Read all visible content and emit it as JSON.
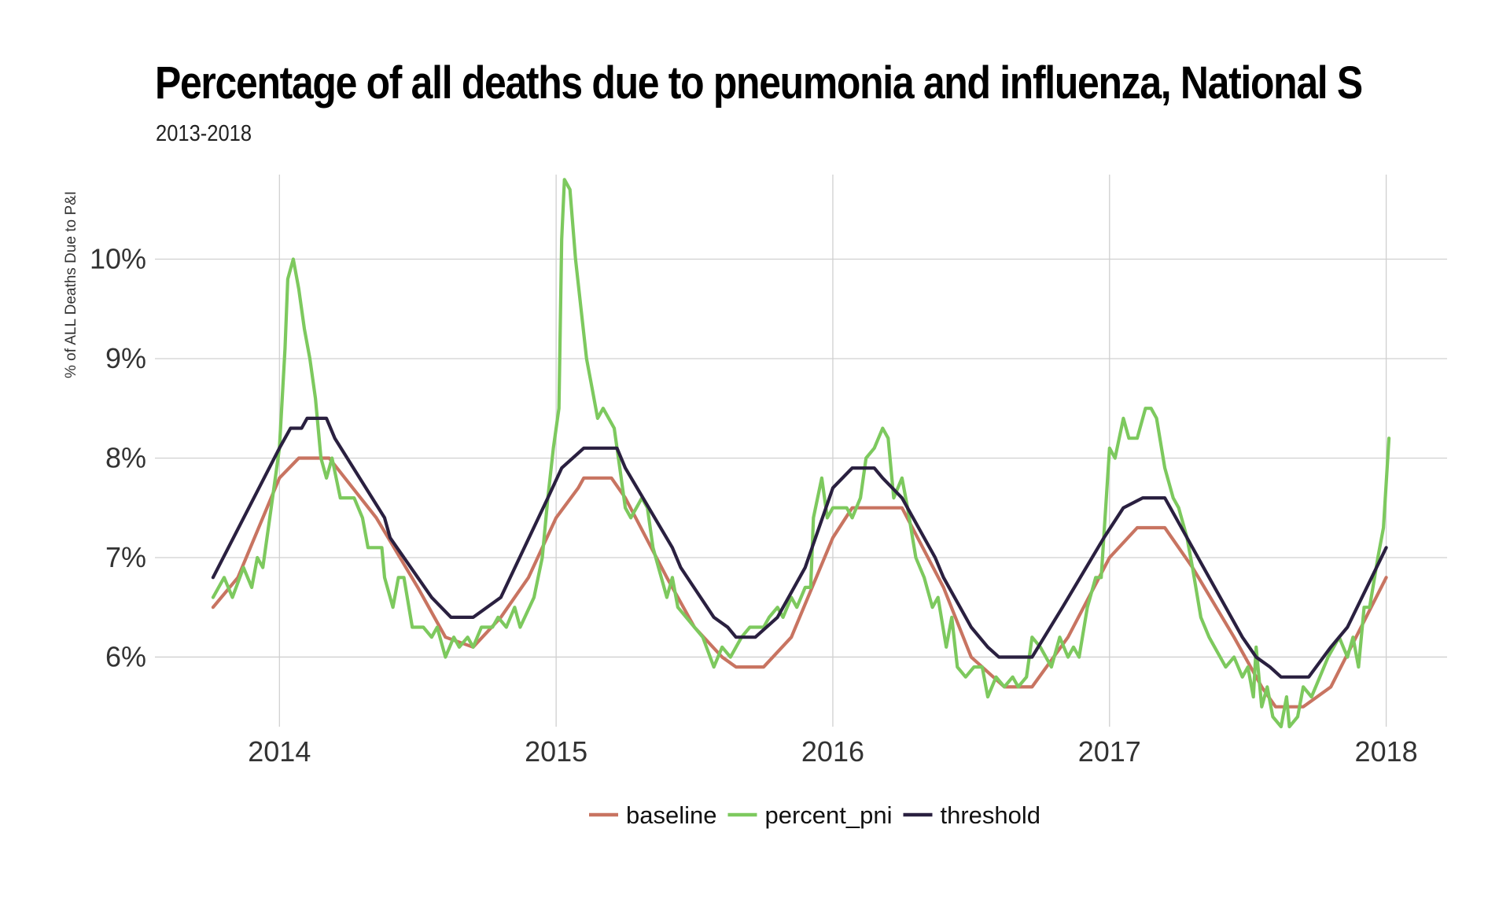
{
  "chart_data": {
    "type": "line",
    "title": "Percentage of all deaths due to pneumonia and influenza, National S",
    "subtitle": "2013-2018",
    "xlabel": "",
    "ylabel": "% of ALL Deaths Due to P&I",
    "xlim": [
      2013.55,
      2018.22
    ],
    "ylim": [
      5.3,
      10.85
    ],
    "x_ticks": [
      2014,
      2015,
      2016,
      2017,
      2018
    ],
    "x_tick_labels": [
      "2014",
      "2015",
      "2016",
      "2017",
      "2018"
    ],
    "y_ticks": [
      6,
      7,
      8,
      9,
      10
    ],
    "y_tick_labels": [
      "6%",
      "7%",
      "8%",
      "9%",
      "10%"
    ],
    "grid": true,
    "legend_position": "bottom",
    "series": [
      {
        "name": "baseline",
        "color": "#C87461",
        "points": [
          [
            2013.76,
            6.5
          ],
          [
            2013.85,
            6.8
          ],
          [
            2014.0,
            7.8
          ],
          [
            2014.07,
            8.0
          ],
          [
            2014.18,
            8.0
          ],
          [
            2014.35,
            7.4
          ],
          [
            2014.5,
            6.7
          ],
          [
            2014.6,
            6.2
          ],
          [
            2014.7,
            6.1
          ],
          [
            2014.8,
            6.4
          ],
          [
            2014.9,
            6.8
          ],
          [
            2015.0,
            7.4
          ],
          [
            2015.08,
            7.7
          ],
          [
            2015.1,
            7.8
          ],
          [
            2015.2,
            7.8
          ],
          [
            2015.25,
            7.6
          ],
          [
            2015.4,
            6.8
          ],
          [
            2015.5,
            6.3
          ],
          [
            2015.6,
            6.0
          ],
          [
            2015.65,
            5.9
          ],
          [
            2015.75,
            5.9
          ],
          [
            2015.85,
            6.2
          ],
          [
            2016.0,
            7.2
          ],
          [
            2016.07,
            7.5
          ],
          [
            2016.25,
            7.5
          ],
          [
            2016.4,
            6.7
          ],
          [
            2016.5,
            6.0
          ],
          [
            2016.58,
            5.8
          ],
          [
            2016.62,
            5.7
          ],
          [
            2016.72,
            5.7
          ],
          [
            2016.85,
            6.2
          ],
          [
            2017.0,
            7.0
          ],
          [
            2017.1,
            7.3
          ],
          [
            2017.2,
            7.3
          ],
          [
            2017.3,
            6.9
          ],
          [
            2017.45,
            6.2
          ],
          [
            2017.55,
            5.7
          ],
          [
            2017.6,
            5.5
          ],
          [
            2017.7,
            5.5
          ],
          [
            2017.8,
            5.7
          ],
          [
            2018.0,
            6.8
          ]
        ]
      },
      {
        "name": "percent_pni",
        "color": "#7DC95E",
        "points": [
          [
            2013.76,
            6.6
          ],
          [
            2013.8,
            6.8
          ],
          [
            2013.83,
            6.6
          ],
          [
            2013.87,
            6.9
          ],
          [
            2013.9,
            6.7
          ],
          [
            2013.92,
            7.0
          ],
          [
            2013.94,
            6.9
          ],
          [
            2013.97,
            7.5
          ],
          [
            2014.0,
            8.1
          ],
          [
            2014.02,
            9.1
          ],
          [
            2014.03,
            9.8
          ],
          [
            2014.05,
            10.0
          ],
          [
            2014.07,
            9.7
          ],
          [
            2014.09,
            9.3
          ],
          [
            2014.11,
            9.0
          ],
          [
            2014.13,
            8.6
          ],
          [
            2014.15,
            8.0
          ],
          [
            2014.17,
            7.8
          ],
          [
            2014.19,
            8.0
          ],
          [
            2014.22,
            7.6
          ],
          [
            2014.27,
            7.6
          ],
          [
            2014.3,
            7.4
          ],
          [
            2014.32,
            7.1
          ],
          [
            2014.37,
            7.1
          ],
          [
            2014.38,
            6.8
          ],
          [
            2014.41,
            6.5
          ],
          [
            2014.43,
            6.8
          ],
          [
            2014.45,
            6.8
          ],
          [
            2014.48,
            6.3
          ],
          [
            2014.52,
            6.3
          ],
          [
            2014.55,
            6.2
          ],
          [
            2014.57,
            6.3
          ],
          [
            2014.6,
            6.0
          ],
          [
            2014.63,
            6.2
          ],
          [
            2014.65,
            6.1
          ],
          [
            2014.68,
            6.2
          ],
          [
            2014.7,
            6.1
          ],
          [
            2014.73,
            6.3
          ],
          [
            2014.77,
            6.3
          ],
          [
            2014.79,
            6.4
          ],
          [
            2014.82,
            6.3
          ],
          [
            2014.85,
            6.5
          ],
          [
            2014.87,
            6.3
          ],
          [
            2014.92,
            6.6
          ],
          [
            2014.95,
            7.0
          ],
          [
            2014.97,
            7.6
          ],
          [
            2014.99,
            8.1
          ],
          [
            2015.01,
            8.5
          ],
          [
            2015.02,
            10.2
          ],
          [
            2015.03,
            10.8
          ],
          [
            2015.05,
            10.7
          ],
          [
            2015.07,
            10.0
          ],
          [
            2015.09,
            9.5
          ],
          [
            2015.11,
            9.0
          ],
          [
            2015.13,
            8.7
          ],
          [
            2015.15,
            8.4
          ],
          [
            2015.17,
            8.5
          ],
          [
            2015.21,
            8.3
          ],
          [
            2015.23,
            7.9
          ],
          [
            2015.25,
            7.5
          ],
          [
            2015.27,
            7.4
          ],
          [
            2015.29,
            7.5
          ],
          [
            2015.31,
            7.6
          ],
          [
            2015.33,
            7.5
          ],
          [
            2015.35,
            7.1
          ],
          [
            2015.37,
            6.9
          ],
          [
            2015.4,
            6.6
          ],
          [
            2015.42,
            6.8
          ],
          [
            2015.44,
            6.5
          ],
          [
            2015.47,
            6.4
          ],
          [
            2015.5,
            6.3
          ],
          [
            2015.53,
            6.2
          ],
          [
            2015.57,
            5.9
          ],
          [
            2015.6,
            6.1
          ],
          [
            2015.63,
            6.0
          ],
          [
            2015.67,
            6.2
          ],
          [
            2015.7,
            6.3
          ],
          [
            2015.75,
            6.3
          ],
          [
            2015.77,
            6.4
          ],
          [
            2015.8,
            6.5
          ],
          [
            2015.82,
            6.4
          ],
          [
            2015.85,
            6.6
          ],
          [
            2015.87,
            6.5
          ],
          [
            2015.9,
            6.7
          ],
          [
            2015.92,
            6.7
          ],
          [
            2015.93,
            7.4
          ],
          [
            2015.96,
            7.8
          ],
          [
            2015.98,
            7.4
          ],
          [
            2016.0,
            7.5
          ],
          [
            2016.05,
            7.5
          ],
          [
            2016.07,
            7.4
          ],
          [
            2016.1,
            7.6
          ],
          [
            2016.12,
            8.0
          ],
          [
            2016.15,
            8.1
          ],
          [
            2016.18,
            8.3
          ],
          [
            2016.2,
            8.2
          ],
          [
            2016.22,
            7.6
          ],
          [
            2016.25,
            7.8
          ],
          [
            2016.27,
            7.5
          ],
          [
            2016.3,
            7.0
          ],
          [
            2016.33,
            6.8
          ],
          [
            2016.36,
            6.5
          ],
          [
            2016.38,
            6.6
          ],
          [
            2016.41,
            6.1
          ],
          [
            2016.43,
            6.4
          ],
          [
            2016.45,
            5.9
          ],
          [
            2016.48,
            5.8
          ],
          [
            2016.51,
            5.9
          ],
          [
            2016.54,
            5.9
          ],
          [
            2016.56,
            5.6
          ],
          [
            2016.59,
            5.8
          ],
          [
            2016.62,
            5.7
          ],
          [
            2016.65,
            5.8
          ],
          [
            2016.67,
            5.7
          ],
          [
            2016.7,
            5.8
          ],
          [
            2016.72,
            6.2
          ],
          [
            2016.75,
            6.1
          ],
          [
            2016.79,
            5.9
          ],
          [
            2016.82,
            6.2
          ],
          [
            2016.85,
            6.0
          ],
          [
            2016.87,
            6.1
          ],
          [
            2016.89,
            6.0
          ],
          [
            2016.92,
            6.5
          ],
          [
            2016.95,
            6.8
          ],
          [
            2016.97,
            6.8
          ],
          [
            2017.0,
            8.1
          ],
          [
            2017.02,
            8.0
          ],
          [
            2017.05,
            8.4
          ],
          [
            2017.07,
            8.2
          ],
          [
            2017.1,
            8.2
          ],
          [
            2017.13,
            8.5
          ],
          [
            2017.15,
            8.5
          ],
          [
            2017.17,
            8.4
          ],
          [
            2017.2,
            7.9
          ],
          [
            2017.23,
            7.6
          ],
          [
            2017.25,
            7.5
          ],
          [
            2017.28,
            7.2
          ],
          [
            2017.3,
            6.9
          ],
          [
            2017.33,
            6.4
          ],
          [
            2017.36,
            6.2
          ],
          [
            2017.4,
            6.0
          ],
          [
            2017.42,
            5.9
          ],
          [
            2017.45,
            6.0
          ],
          [
            2017.48,
            5.8
          ],
          [
            2017.5,
            5.9
          ],
          [
            2017.52,
            5.6
          ],
          [
            2017.53,
            6.1
          ],
          [
            2017.55,
            5.5
          ],
          [
            2017.57,
            5.7
          ],
          [
            2017.59,
            5.4
          ],
          [
            2017.62,
            5.3
          ],
          [
            2017.64,
            5.6
          ],
          [
            2017.65,
            5.3
          ],
          [
            2017.68,
            5.4
          ],
          [
            2017.7,
            5.7
          ],
          [
            2017.73,
            5.6
          ],
          [
            2017.76,
            5.8
          ],
          [
            2017.79,
            6.0
          ],
          [
            2017.83,
            6.2
          ],
          [
            2017.86,
            6.0
          ],
          [
            2017.88,
            6.2
          ],
          [
            2017.9,
            5.9
          ],
          [
            2017.92,
            6.5
          ],
          [
            2017.94,
            6.5
          ],
          [
            2017.97,
            7.0
          ],
          [
            2017.99,
            7.3
          ],
          [
            2018.01,
            8.2
          ]
        ]
      },
      {
        "name": "threshold",
        "color": "#2A2040",
        "points": [
          [
            2013.76,
            6.8
          ],
          [
            2014.0,
            8.1
          ],
          [
            2014.04,
            8.3
          ],
          [
            2014.08,
            8.3
          ],
          [
            2014.1,
            8.4
          ],
          [
            2014.17,
            8.4
          ],
          [
            2014.2,
            8.2
          ],
          [
            2014.38,
            7.4
          ],
          [
            2014.4,
            7.2
          ],
          [
            2014.55,
            6.6
          ],
          [
            2014.62,
            6.4
          ],
          [
            2014.7,
            6.4
          ],
          [
            2014.8,
            6.6
          ],
          [
            2014.97,
            7.6
          ],
          [
            2015.02,
            7.9
          ],
          [
            2015.1,
            8.1
          ],
          [
            2015.22,
            8.1
          ],
          [
            2015.25,
            7.9
          ],
          [
            2015.42,
            7.1
          ],
          [
            2015.45,
            6.9
          ],
          [
            2015.57,
            6.4
          ],
          [
            2015.62,
            6.3
          ],
          [
            2015.65,
            6.2
          ],
          [
            2015.72,
            6.2
          ],
          [
            2015.8,
            6.4
          ],
          [
            2015.9,
            6.9
          ],
          [
            2016.0,
            7.7
          ],
          [
            2016.07,
            7.9
          ],
          [
            2016.15,
            7.9
          ],
          [
            2016.18,
            7.8
          ],
          [
            2016.25,
            7.6
          ],
          [
            2016.37,
            7.0
          ],
          [
            2016.4,
            6.8
          ],
          [
            2016.5,
            6.3
          ],
          [
            2016.56,
            6.1
          ],
          [
            2016.6,
            6.0
          ],
          [
            2016.72,
            6.0
          ],
          [
            2016.83,
            6.5
          ],
          [
            2016.98,
            7.2
          ],
          [
            2017.05,
            7.5
          ],
          [
            2017.12,
            7.6
          ],
          [
            2017.2,
            7.6
          ],
          [
            2017.24,
            7.4
          ],
          [
            2017.48,
            6.2
          ],
          [
            2017.53,
            6.0
          ],
          [
            2017.58,
            5.9
          ],
          [
            2017.62,
            5.8
          ],
          [
            2017.72,
            5.8
          ],
          [
            2017.8,
            6.1
          ],
          [
            2017.86,
            6.3
          ],
          [
            2018.0,
            7.1
          ]
        ]
      }
    ]
  }
}
